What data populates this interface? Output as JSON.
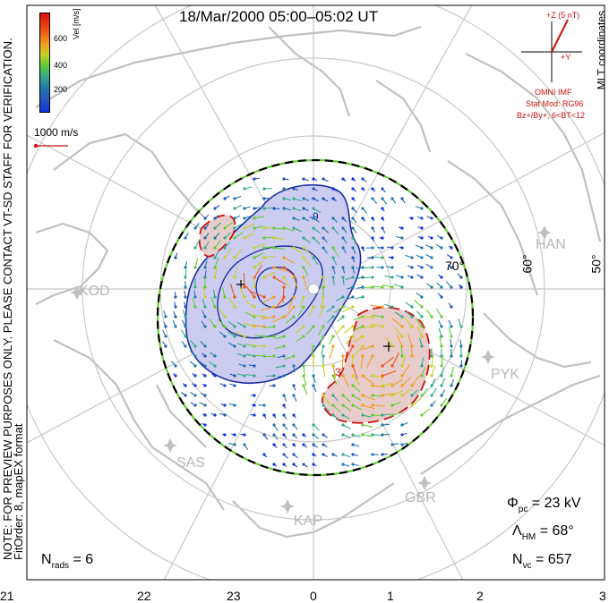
{
  "title": "18/Mar/2000 05:00–05:02 UT",
  "colors": {
    "pos_cell": "#e8cccc",
    "neg_cell": "#ccccf0",
    "neg_contour": "#1a2fa0",
    "pos_contour": "#cc1111",
    "land": "#c0c0c0",
    "grid": "#c8c8c8"
  },
  "colorbar": {
    "ticks": [
      "600",
      "400",
      "200"
    ],
    "label": "Vel [m/s]"
  },
  "coords_label": "MLT coordinates",
  "scale_vector": {
    "label": "1000 m/s"
  },
  "imf": {
    "z_label": "+Z (5 nT)",
    "y_label": "+Y",
    "source": "OMNI IMF",
    "model_line1": "Stat Mod: RG96",
    "model_line2": "Bz+/By+, 6<BT<12"
  },
  "note_line1": "NOTE: FOR PREVIEW PURPOSES ONLY. PLEASE CONTACT VT-SD STAFF FOR VERIFICATION.",
  "note_line2": "FitOrder: 8, mapEX format",
  "stats": {
    "phi_pc_symbol": "Φ",
    "phi_pc_sub": "pc",
    "phi_pc_value": "= 23 kV",
    "lambda_symbol": "Λ",
    "lambda_sub": "HM",
    "lambda_value": "= 68°",
    "nvc_symbol": "N",
    "nvc_sub": "vc",
    "nvc_value": "= 657",
    "nrads_symbol": "N",
    "nrads_sub": "rads",
    "nrads_value": "= 6"
  },
  "latitude_labels": [
    "70°",
    "60°",
    "50°"
  ],
  "stations": [
    "KOD",
    "HAN",
    "PYK",
    "SAS",
    "KAP",
    "GBR"
  ],
  "mlt_ticks": [
    "21",
    "22",
    "23",
    "0",
    "1",
    "2",
    "3"
  ]
}
